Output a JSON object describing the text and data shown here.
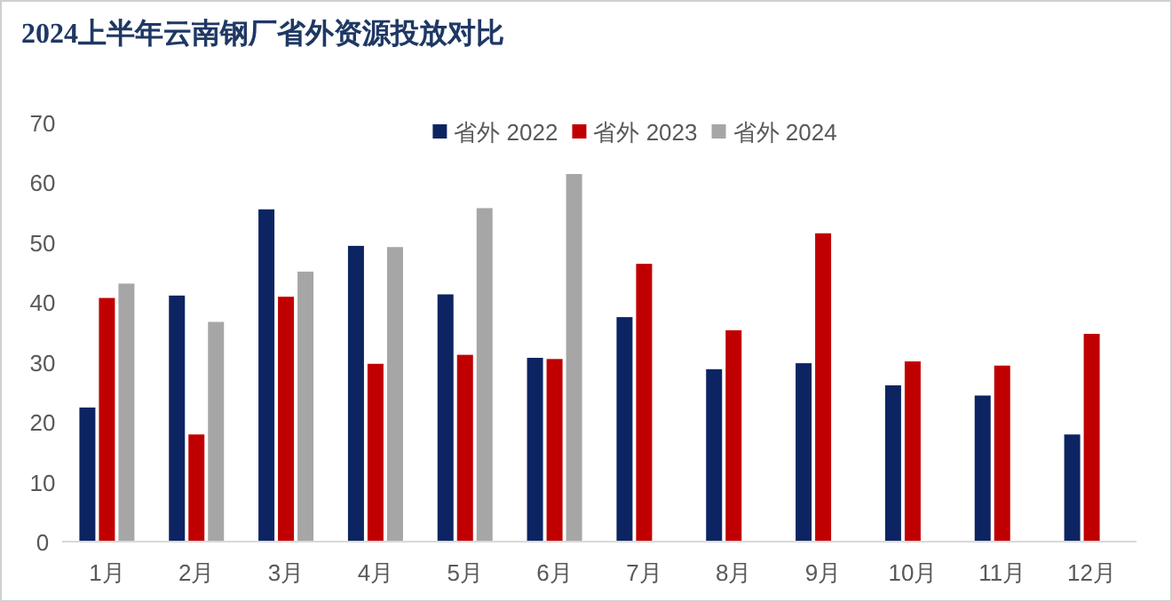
{
  "chart_data": {
    "type": "bar",
    "title": "2024上半年云南钢厂省外资源投放对比",
    "categories": [
      "1月",
      "2月",
      "3月",
      "4月",
      "5月",
      "6月",
      "7月",
      "8月",
      "9月",
      "10月",
      "11月",
      "12月"
    ],
    "series": [
      {
        "name": "省外 2022",
        "color": "#0d2462",
        "values": [
          22.4,
          41.1,
          55.5,
          49.4,
          41.3,
          30.7,
          37.5,
          28.8,
          29.8,
          26.1,
          24.4,
          17.9
        ]
      },
      {
        "name": "省外 2023",
        "color": "#c00000",
        "values": [
          40.7,
          17.9,
          40.9,
          29.7,
          31.2,
          30.5,
          46.4,
          35.3,
          51.5,
          30.1,
          29.4,
          34.7
        ]
      },
      {
        "name": "省外 2024",
        "color": "#a6a6a6",
        "values": [
          43.1,
          36.7,
          45.1,
          49.2,
          55.7,
          61.4,
          null,
          null,
          null,
          null,
          null,
          null
        ]
      }
    ],
    "ylim": [
      0,
      70
    ],
    "yticks": [
      0,
      10,
      20,
      30,
      40,
      50,
      60,
      70
    ],
    "legend": "top"
  }
}
